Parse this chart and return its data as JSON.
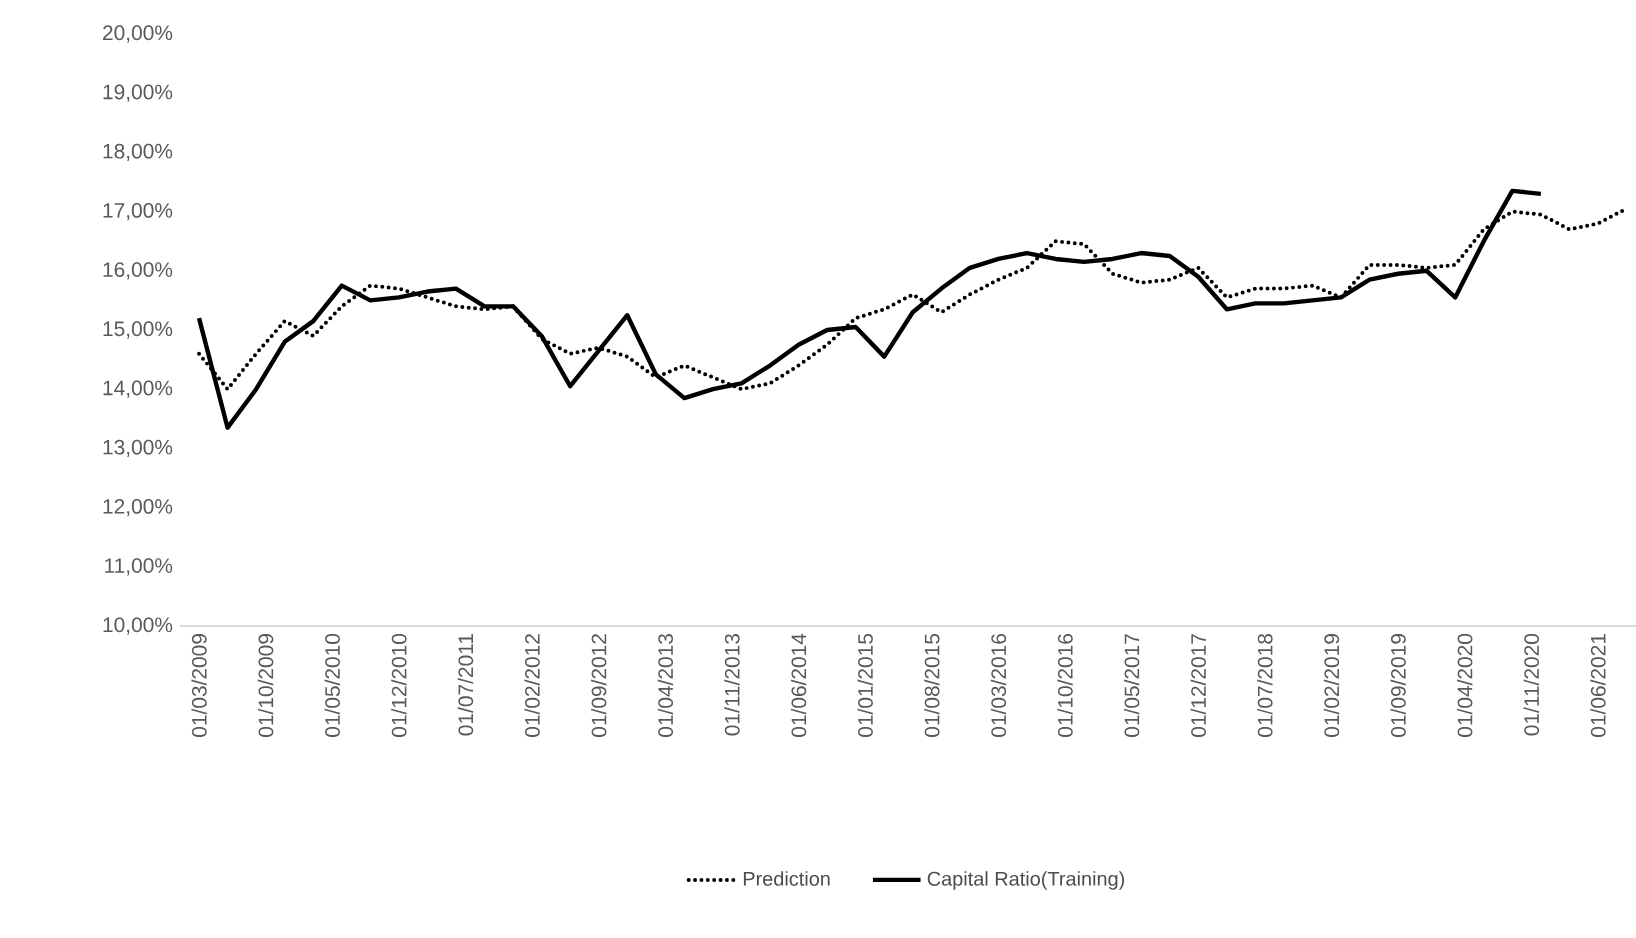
{
  "chart_data": {
    "type": "line",
    "x": [
      "2009-03",
      "2009-06",
      "2009-09",
      "2009-12",
      "2010-03",
      "2010-06",
      "2010-09",
      "2010-12",
      "2011-03",
      "2011-06",
      "2011-09",
      "2011-12",
      "2012-03",
      "2012-06",
      "2012-09",
      "2012-12",
      "2013-03",
      "2013-06",
      "2013-09",
      "2013-12",
      "2014-03",
      "2014-06",
      "2014-09",
      "2014-12",
      "2015-03",
      "2015-06",
      "2015-09",
      "2015-12",
      "2016-03",
      "2016-06",
      "2016-09",
      "2016-12",
      "2017-03",
      "2017-06",
      "2017-09",
      "2017-12",
      "2018-03",
      "2018-06",
      "2018-09",
      "2018-12",
      "2019-03",
      "2019-06",
      "2019-09",
      "2019-12",
      "2020-03",
      "2020-06",
      "2020-09",
      "2020-12",
      "2021-03",
      "2021-06",
      "2021-09"
    ],
    "series": [
      {
        "name": "Prediction",
        "color": "#000000",
        "line_style": "dotted",
        "values": [
          14.6,
          14.0,
          14.6,
          15.15,
          14.9,
          15.4,
          15.75,
          15.7,
          15.55,
          15.4,
          15.35,
          15.4,
          14.85,
          14.6,
          14.7,
          14.55,
          14.2,
          14.4,
          14.2,
          14.0,
          14.1,
          14.4,
          14.75,
          15.2,
          15.35,
          15.6,
          15.3,
          15.6,
          15.85,
          16.05,
          16.5,
          16.45,
          15.95,
          15.8,
          15.85,
          16.05,
          15.55,
          15.7,
          15.7,
          15.75,
          15.55,
          16.1,
          16.1,
          16.05,
          16.1,
          16.7,
          17.0,
          16.95,
          16.7,
          16.8,
          17.05
        ]
      },
      {
        "name": "Capital Ratio(Training)",
        "color": "#000000",
        "line_style": "solid",
        "values": [
          15.2,
          13.35,
          14.0,
          14.8,
          15.15,
          15.75,
          15.5,
          15.55,
          15.65,
          15.7,
          15.4,
          15.4,
          14.9,
          14.05,
          14.65,
          15.25,
          14.25,
          13.85,
          14.0,
          14.1,
          14.4,
          14.75,
          15.0,
          15.05,
          14.55,
          15.3,
          15.7,
          16.05,
          16.2,
          16.3,
          16.2,
          16.15,
          16.2,
          16.3,
          16.25,
          15.9,
          15.35,
          15.45,
          15.45,
          15.5,
          15.55,
          15.85,
          15.95,
          16.0,
          15.55,
          16.5,
          17.35,
          17.3,
          null,
          null,
          null
        ]
      }
    ],
    "xlim": [
      "2009-01",
      "2021-10"
    ],
    "xticks": [
      {
        "value": "2009-03-01",
        "label": "01/03/2009"
      },
      {
        "value": "2009-10-01",
        "label": "01/10/2009"
      },
      {
        "value": "2010-05-01",
        "label": "01/05/2010"
      },
      {
        "value": "2010-12-01",
        "label": "01/12/2010"
      },
      {
        "value": "2011-07-01",
        "label": "01/07/2011"
      },
      {
        "value": "2012-02-01",
        "label": "01/02/2012"
      },
      {
        "value": "2012-09-01",
        "label": "01/09/2012"
      },
      {
        "value": "2013-04-01",
        "label": "01/04/2013"
      },
      {
        "value": "2013-11-01",
        "label": "01/11/2013"
      },
      {
        "value": "2014-06-01",
        "label": "01/06/2014"
      },
      {
        "value": "2015-01-01",
        "label": "01/01/2015"
      },
      {
        "value": "2015-08-01",
        "label": "01/08/2015"
      },
      {
        "value": "2016-03-01",
        "label": "01/03/2016"
      },
      {
        "value": "2016-10-01",
        "label": "01/10/2016"
      },
      {
        "value": "2017-05-01",
        "label": "01/05/2017"
      },
      {
        "value": "2017-12-01",
        "label": "01/12/2017"
      },
      {
        "value": "2018-07-01",
        "label": "01/07/2018"
      },
      {
        "value": "2019-02-01",
        "label": "01/02/2019"
      },
      {
        "value": "2019-09-01",
        "label": "01/09/2019"
      },
      {
        "value": "2020-04-01",
        "label": "01/04/2020"
      },
      {
        "value": "2020-11-01",
        "label": "01/11/2020"
      },
      {
        "value": "2021-06-01",
        "label": "01/06/2021"
      }
    ],
    "ylim": [
      10,
      20
    ],
    "yticks": [
      {
        "value": 10,
        "label": "10,00%"
      },
      {
        "value": 11,
        "label": "11,00%"
      },
      {
        "value": 12,
        "label": "12,00%"
      },
      {
        "value": 13,
        "label": "13,00%"
      },
      {
        "value": 14,
        "label": "14,00%"
      },
      {
        "value": 15,
        "label": "15,00%"
      },
      {
        "value": 16,
        "label": "16,00%"
      },
      {
        "value": 17,
        "label": "17,00%"
      },
      {
        "value": 18,
        "label": "18,00%"
      },
      {
        "value": 19,
        "label": "19,00%"
      },
      {
        "value": 20,
        "label": "20,00%"
      }
    ],
    "legend": "bottom"
  }
}
